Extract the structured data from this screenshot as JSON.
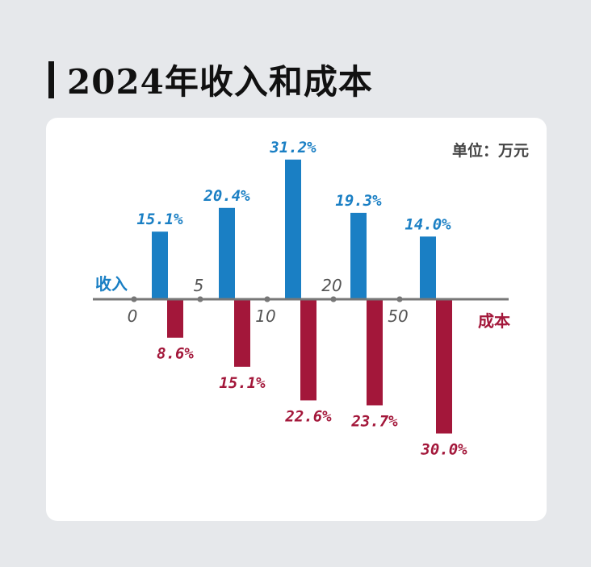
{
  "title": "2024年收入和成本",
  "unit_label": "单位：万元",
  "colors": {
    "income": "#1a7fc4",
    "cost": "#a3173a",
    "axis": "#777777",
    "tick_label": "#555555",
    "background": "#e6e8eb",
    "card": "#ffffff"
  },
  "chart_data": {
    "type": "bar",
    "orientation": "diverging",
    "x_tick_labels": [
      "0",
      "5",
      "10",
      "20",
      "50"
    ],
    "series": [
      {
        "name": "收入",
        "values": [
          15.1,
          20.4,
          31.2,
          19.3,
          14.0
        ],
        "labels": [
          "15.1%",
          "20.4%",
          "31.2%",
          "19.3%",
          "14.0%"
        ]
      },
      {
        "name": "成本",
        "values": [
          8.6,
          15.1,
          22.6,
          23.7,
          30.0
        ],
        "labels": [
          "8.6%",
          "15.1%",
          "22.6%",
          "23.7%",
          "30.0%"
        ]
      }
    ],
    "ylim": [
      -30,
      31.2
    ],
    "grid": false,
    "legend": "axis-side"
  }
}
